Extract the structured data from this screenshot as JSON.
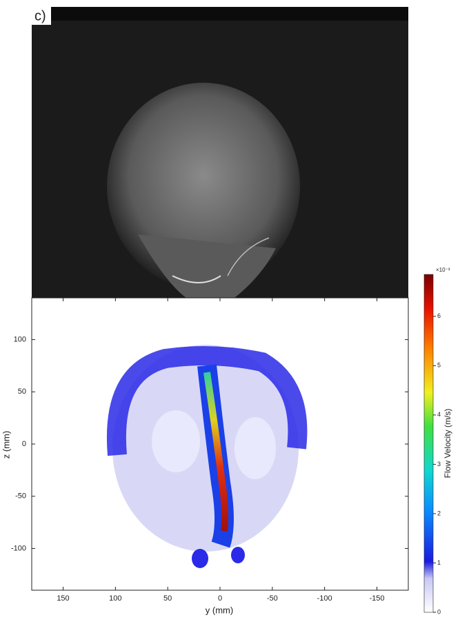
{
  "chart_data": {
    "type": "heatmap",
    "panel_label": "c)",
    "xlabel": "y (mm)",
    "ylabel": "z (mm)",
    "xlim": [
      180,
      -180
    ],
    "xticks": [
      150,
      100,
      50,
      0,
      -50,
      -100,
      -150
    ],
    "ylim": [
      -140,
      140
    ],
    "yticks": [
      100,
      50,
      0,
      -50,
      -100
    ],
    "colorbar": {
      "label": "Flow Velocity (m/s)",
      "multiplier": "×10⁻³",
      "clim": [
        0,
        6.85
      ],
      "ticks": [
        0,
        1,
        2,
        3,
        4,
        5,
        6
      ]
    }
  }
}
